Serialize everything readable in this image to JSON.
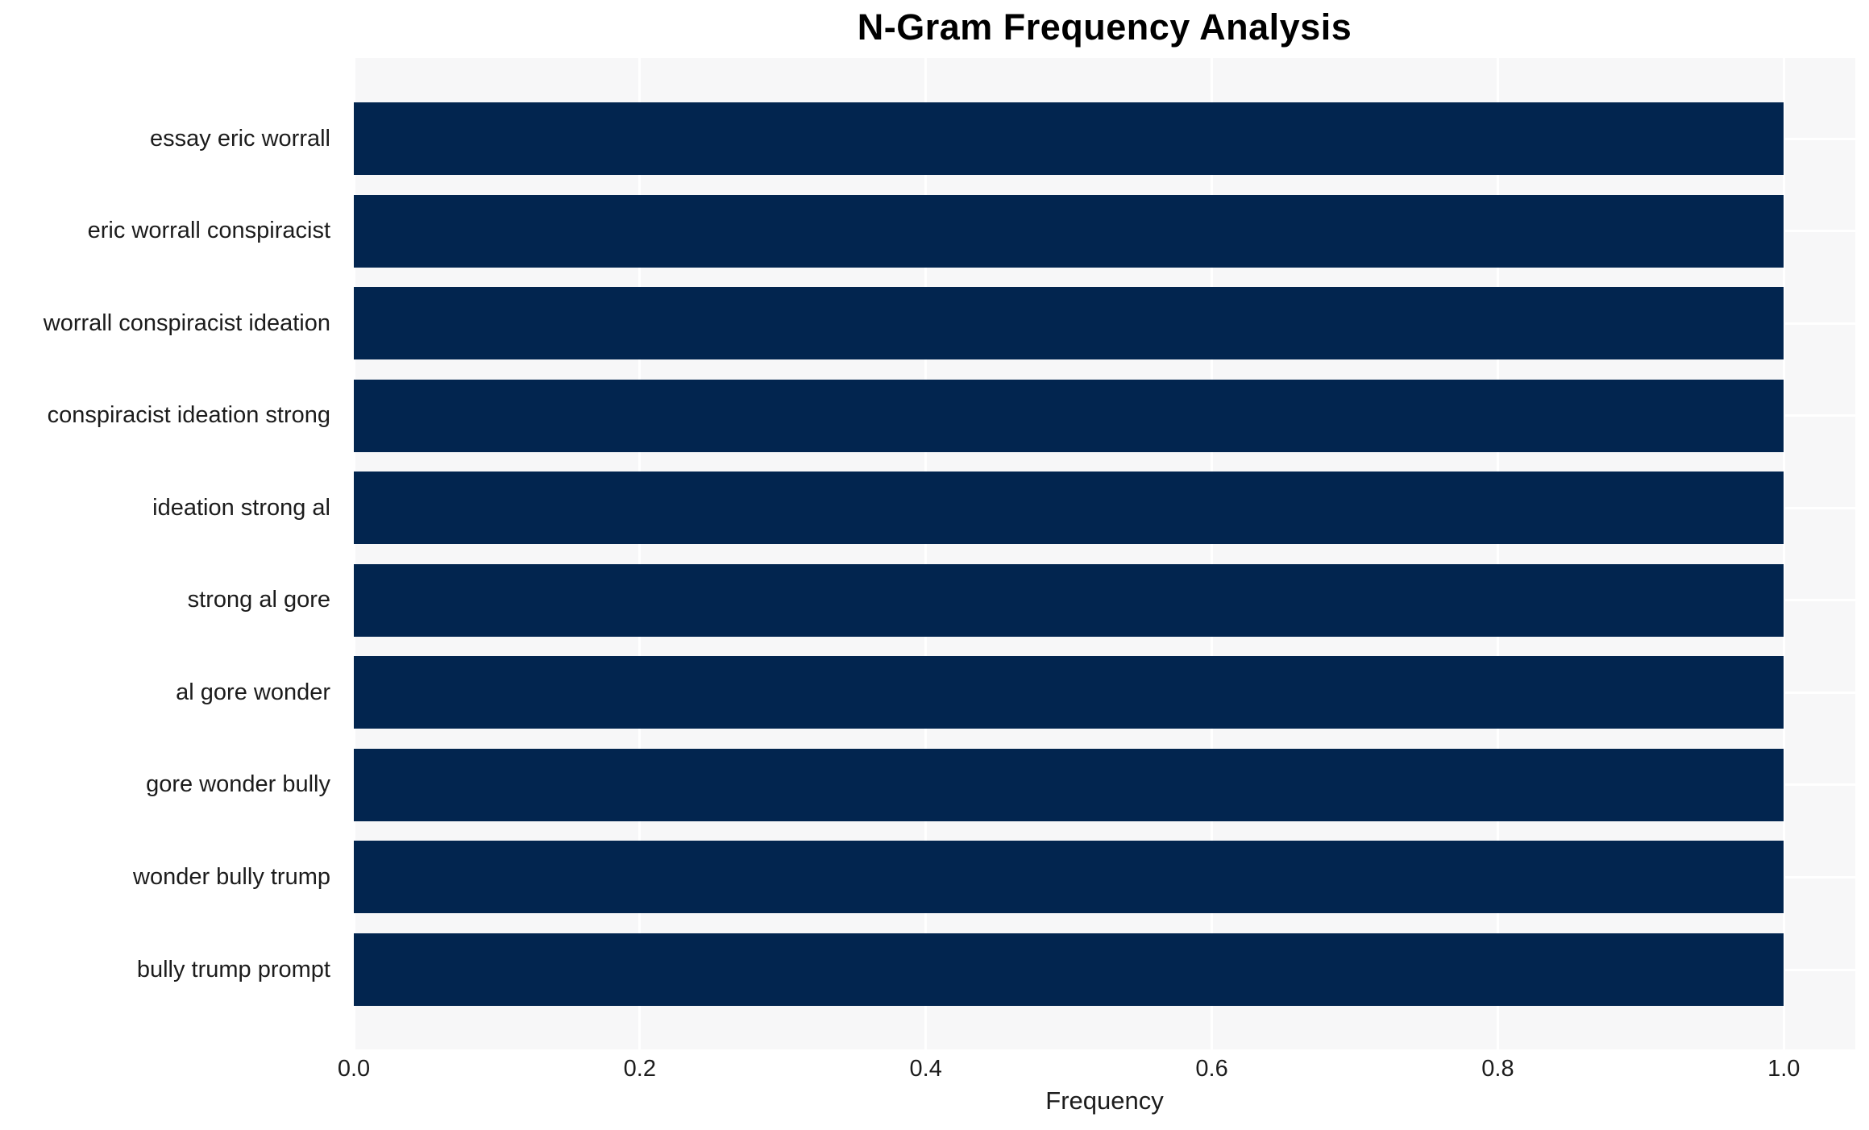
{
  "chart_data": {
    "type": "bar",
    "orientation": "horizontal",
    "title": "N-Gram Frequency Analysis",
    "xlabel": "Frequency",
    "ylabel": "",
    "categories": [
      "essay eric worrall",
      "eric worrall conspiracist",
      "worrall conspiracist ideation",
      "conspiracist ideation strong",
      "ideation strong al",
      "strong al gore",
      "al gore wonder",
      "gore wonder bully",
      "wonder bully trump",
      "bully trump prompt"
    ],
    "values": [
      1.0,
      1.0,
      1.0,
      1.0,
      1.0,
      1.0,
      1.0,
      1.0,
      1.0,
      1.0
    ],
    "xlim": [
      0,
      1.05
    ],
    "xtick_values": [
      0.0,
      0.2,
      0.4,
      0.6,
      0.8,
      1.0
    ],
    "xtick_labels": [
      "0.0",
      "0.2",
      "0.4",
      "0.6",
      "0.8",
      "1.0"
    ],
    "grid": true,
    "legend": false,
    "colors": {
      "bar": "#02254f",
      "plot_background": "#f7f7f8",
      "gridline": "#ffffff",
      "text": "#1c1c1c",
      "title": "#000000",
      "page_background": "#ffffff"
    }
  }
}
